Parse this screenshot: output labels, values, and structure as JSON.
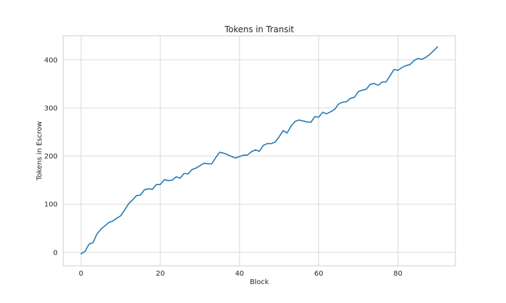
{
  "chart_data": {
    "type": "line",
    "title": "Tokens in Transit",
    "xlabel": "Block",
    "ylabel": "Tokens in Escrow",
    "xlim": [
      -4.5,
      94.5
    ],
    "ylim": [
      -28,
      450
    ],
    "xticks": [
      0,
      20,
      40,
      60,
      80
    ],
    "yticks": [
      0,
      100,
      200,
      300,
      400
    ],
    "grid": true,
    "line_color": "#1f77b4",
    "series": [
      {
        "x": [
          0,
          1,
          2,
          3,
          4,
          5,
          6,
          7,
          8,
          9,
          10,
          11,
          12,
          13,
          14,
          15,
          16,
          17,
          18,
          19,
          20,
          21,
          22,
          23,
          24,
          25,
          26,
          27,
          28,
          29,
          30,
          31,
          32,
          33,
          34,
          35,
          36,
          37,
          38,
          39,
          40,
          41,
          42,
          43,
          44,
          45,
          46,
          47,
          48,
          49,
          50,
          51,
          52,
          53,
          54,
          55,
          56,
          57,
          58,
          59,
          60,
          61,
          62,
          63,
          64,
          65,
          66,
          67,
          68,
          69,
          70,
          71,
          72,
          73,
          74,
          75,
          76,
          77,
          78,
          79,
          80,
          81,
          82,
          83,
          84,
          85,
          86,
          87,
          88,
          89,
          90
        ],
        "y": [
          -3,
          2,
          17,
          20,
          38,
          48,
          55,
          62,
          65,
          71,
          76,
          88,
          101,
          109,
          118,
          119,
          130,
          132,
          131,
          141,
          141,
          151,
          149,
          150,
          157,
          154,
          164,
          163,
          172,
          175,
          180,
          185,
          184,
          184,
          197,
          208,
          206,
          203,
          199,
          196,
          199,
          202,
          202,
          209,
          213,
          210,
          222,
          226,
          226,
          229,
          240,
          253,
          248,
          262,
          272,
          275,
          273,
          271,
          270,
          282,
          281,
          291,
          288,
          292,
          297,
          308,
          312,
          313,
          320,
          322,
          334,
          337,
          339,
          349,
          351,
          347,
          354,
          354,
          367,
          380,
          378,
          384,
          388,
          390,
          398,
          403,
          401,
          405,
          411,
          419,
          427
        ]
      }
    ]
  }
}
